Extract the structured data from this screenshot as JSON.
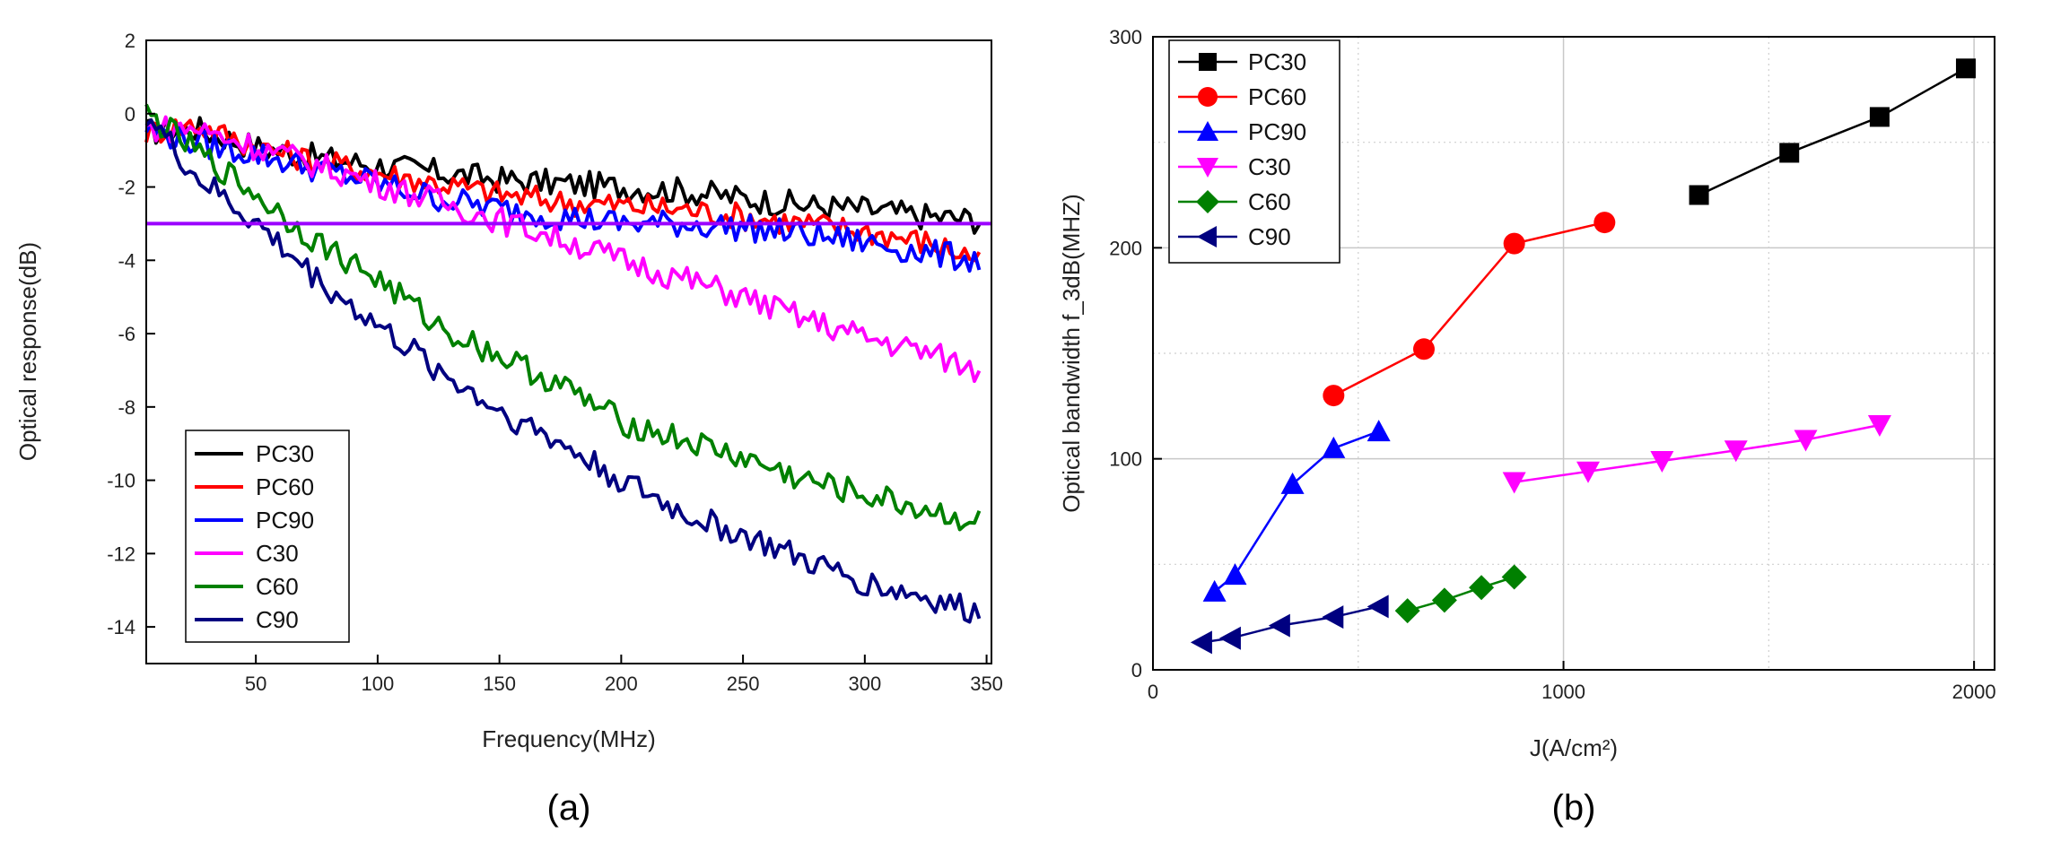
{
  "chart_data": [
    {
      "type": "line",
      "panel_label": "(a)",
      "xlabel": "Frequency(MHz)",
      "ylabel": "Optical response(dB)",
      "xlim": [
        5,
        352
      ],
      "ylim": [
        -15,
        2
      ],
      "xticks": [
        50,
        100,
        150,
        200,
        250,
        300,
        350
      ],
      "yticks": [
        2,
        0,
        -2,
        -4,
        -6,
        -8,
        -10,
        -12,
        -14
      ],
      "grid": false,
      "legend_position": "bottom-left",
      "reference_line": {
        "y": -3,
        "color": "#9b00ff"
      },
      "series": [
        {
          "name": "PC30",
          "color": "#000000",
          "x": [
            5,
            25,
            50,
            75,
            100,
            125,
            150,
            175,
            200,
            225,
            250,
            275,
            300,
            325,
            350
          ],
          "y": [
            -0.5,
            -0.4,
            -0.9,
            -1.2,
            -1.4,
            -1.6,
            -1.8,
            -1.9,
            -2.0,
            -2.1,
            -2.3,
            -2.5,
            -2.6,
            -2.8,
            -2.9
          ]
        },
        {
          "name": "PC60",
          "color": "#ff0000",
          "x": [
            5,
            25,
            50,
            75,
            100,
            125,
            150,
            175,
            200,
            225,
            250,
            275,
            300,
            325,
            350
          ],
          "y": [
            -0.5,
            -0.3,
            -0.9,
            -1.3,
            -1.6,
            -1.9,
            -2.2,
            -2.4,
            -2.5,
            -2.6,
            -2.8,
            -3.0,
            -3.2,
            -3.5,
            -4.0
          ]
        },
        {
          "name": "PC90",
          "color": "#0000ff",
          "x": [
            5,
            25,
            50,
            75,
            100,
            125,
            150,
            175,
            200,
            225,
            250,
            275,
            300,
            325,
            350
          ],
          "y": [
            -0.4,
            -0.8,
            -1.1,
            -1.5,
            -1.9,
            -2.3,
            -2.6,
            -2.8,
            -3.0,
            -3.0,
            -3.1,
            -3.3,
            -3.5,
            -3.8,
            -4.0
          ]
        },
        {
          "name": "C30",
          "color": "#ff00ff",
          "x": [
            5,
            25,
            50,
            75,
            100,
            125,
            150,
            175,
            200,
            225,
            250,
            275,
            300,
            325,
            350
          ],
          "y": [
            -0.4,
            -0.4,
            -0.9,
            -1.4,
            -1.9,
            -2.4,
            -2.9,
            -3.4,
            -4.0,
            -4.5,
            -5.0,
            -5.6,
            -6.1,
            -6.5,
            -7.1
          ]
        },
        {
          "name": "C60",
          "color": "#008000",
          "x": [
            5,
            25,
            50,
            75,
            100,
            125,
            150,
            175,
            200,
            225,
            250,
            275,
            300,
            325,
            350
          ],
          "y": [
            0.0,
            -1.0,
            -2.2,
            -3.5,
            -4.5,
            -5.8,
            -6.6,
            -7.4,
            -8.4,
            -8.9,
            -9.4,
            -10.0,
            -10.4,
            -10.8,
            -11.2
          ]
        },
        {
          "name": "C90",
          "color": "#000080",
          "x": [
            5,
            25,
            50,
            75,
            100,
            125,
            150,
            175,
            200,
            225,
            250,
            275,
            300,
            325,
            350
          ],
          "y": [
            0.0,
            -1.7,
            -3.0,
            -4.5,
            -5.8,
            -7.0,
            -8.1,
            -9.0,
            -10.0,
            -10.9,
            -11.5,
            -12.2,
            -12.8,
            -13.2,
            -13.7
          ]
        }
      ]
    },
    {
      "type": "line",
      "panel_label": "(b)",
      "xlabel": "J(A/cm²)",
      "ylabel": "Optical bandwidth f_3dB(MHZ)",
      "xlim": [
        0,
        2050
      ],
      "ylim": [
        0,
        300
      ],
      "xticks": [
        0,
        1000,
        2000
      ],
      "yticks": [
        0,
        100,
        200,
        300
      ],
      "grid": true,
      "legend_position": "top-left",
      "series": [
        {
          "name": "PC30",
          "color": "#000000",
          "marker": "square",
          "x": [
            1330,
            1550,
            1770,
            1980
          ],
          "y": [
            225,
            245,
            262,
            285
          ]
        },
        {
          "name": "PC60",
          "color": "#ff0000",
          "marker": "circle",
          "x": [
            440,
            660,
            880,
            1100
          ],
          "y": [
            130,
            152,
            202,
            212
          ]
        },
        {
          "name": "PC90",
          "color": "#0000ff",
          "marker": "triangle-up",
          "x": [
            150,
            200,
            340,
            440,
            550
          ],
          "y": [
            37,
            45,
            88,
            105,
            113
          ]
        },
        {
          "name": "C30",
          "color": "#ff00ff",
          "marker": "triangle-down",
          "x": [
            880,
            1060,
            1240,
            1420,
            1590,
            1770
          ],
          "y": [
            89,
            94,
            99,
            104,
            109,
            116
          ]
        },
        {
          "name": "C60",
          "color": "#008000",
          "marker": "diamond",
          "x": [
            620,
            710,
            800,
            880
          ],
          "y": [
            28,
            33,
            39,
            44
          ]
        },
        {
          "name": "C90",
          "color": "#000080",
          "marker": "triangle-left",
          "x": [
            120,
            190,
            310,
            440,
            550
          ],
          "y": [
            13,
            15,
            21,
            25,
            30
          ]
        }
      ]
    }
  ]
}
